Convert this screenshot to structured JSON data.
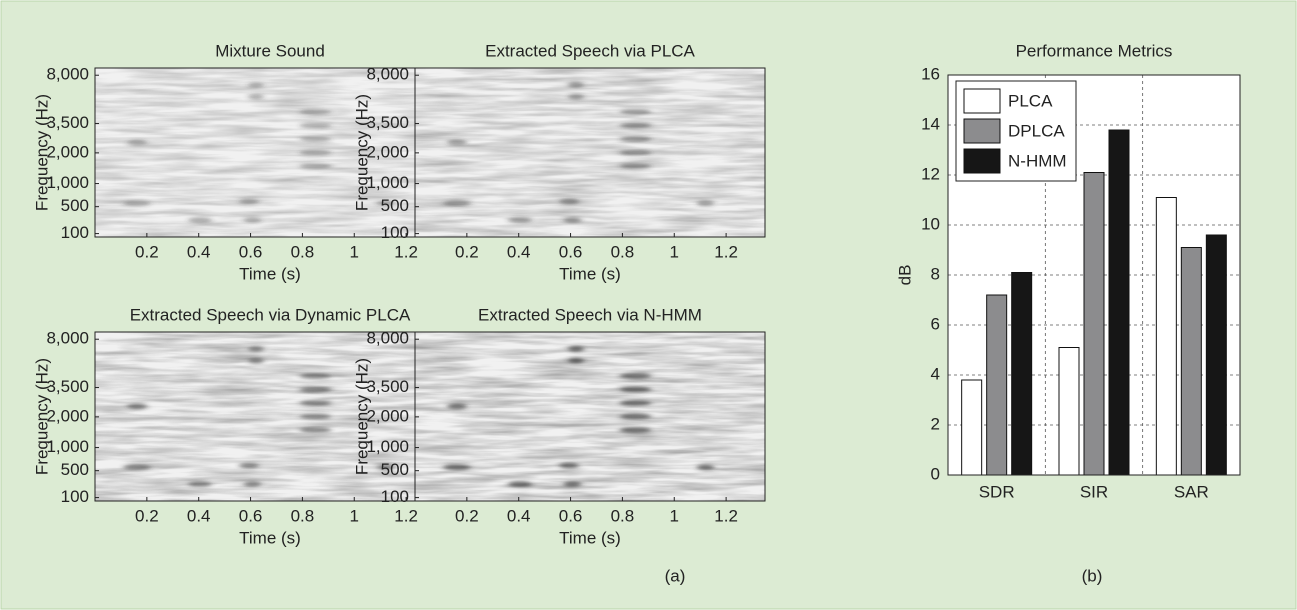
{
  "chart_data": [
    {
      "type": "spectrogram",
      "title": "Mixture Sound",
      "xlabel": "Time (s)",
      "ylabel": "Frequency (Hz)",
      "xlim": [
        0,
        1.35
      ],
      "xticks": [
        0.2,
        0.4,
        0.6,
        0.8,
        1,
        1.2
      ],
      "yscale": "mel",
      "ylim": [
        60,
        9000
      ],
      "yticks": [
        {
          "value": 100,
          "label": "100"
        },
        {
          "value": 500,
          "label": "500"
        },
        {
          "value": 1000,
          "label": "1,000"
        },
        {
          "value": 2000,
          "label": "2,000"
        },
        {
          "value": 3500,
          "label": "3,500"
        },
        {
          "value": 8000,
          "label": "8,000"
        }
      ]
    },
    {
      "type": "spectrogram",
      "title": "Extracted Speech via PLCA",
      "xlabel": "Time (s)",
      "ylabel": "Frequency (Hz)",
      "xlim": [
        0,
        1.35
      ],
      "xticks": [
        0.2,
        0.4,
        0.6,
        0.8,
        1,
        1.2
      ],
      "yscale": "mel",
      "ylim": [
        60,
        9000
      ],
      "yticks": [
        {
          "value": 100,
          "label": "100"
        },
        {
          "value": 500,
          "label": "500"
        },
        {
          "value": 1000,
          "label": "1,000"
        },
        {
          "value": 2000,
          "label": "2,000"
        },
        {
          "value": 3500,
          "label": "3,500"
        },
        {
          "value": 8000,
          "label": "8,000"
        }
      ]
    },
    {
      "type": "spectrogram",
      "title": "Extracted Speech via Dynamic PLCA",
      "xlabel": "Time (s)",
      "ylabel": "Frequency (Hz)",
      "xlim": [
        0,
        1.35
      ],
      "xticks": [
        0.2,
        0.4,
        0.6,
        0.8,
        1,
        1.2
      ],
      "yscale": "mel",
      "ylim": [
        60,
        9000
      ],
      "yticks": [
        {
          "value": 100,
          "label": "100"
        },
        {
          "value": 500,
          "label": "500"
        },
        {
          "value": 1000,
          "label": "1,000"
        },
        {
          "value": 2000,
          "label": "2,000"
        },
        {
          "value": 3500,
          "label": "3,500"
        },
        {
          "value": 8000,
          "label": "8,000"
        }
      ]
    },
    {
      "type": "spectrogram",
      "title": "Extracted Speech via N-HMM",
      "xlabel": "Time (s)",
      "ylabel": "Frequency (Hz)",
      "xlim": [
        0,
        1.35
      ],
      "xticks": [
        0.2,
        0.4,
        0.6,
        0.8,
        1,
        1.2
      ],
      "yscale": "mel",
      "ylim": [
        60,
        9000
      ],
      "yticks": [
        {
          "value": 100,
          "label": "100"
        },
        {
          "value": 500,
          "label": "500"
        },
        {
          "value": 1000,
          "label": "1,000"
        },
        {
          "value": 2000,
          "label": "2,000"
        },
        {
          "value": 3500,
          "label": "3,500"
        },
        {
          "value": 8000,
          "label": "8,000"
        }
      ]
    },
    {
      "type": "bar",
      "title": "Performance Metrics",
      "ylabel": "dB",
      "categories": [
        "SDR",
        "SIR",
        "SAR"
      ],
      "series": [
        {
          "name": "PLCA",
          "color": "#ffffff",
          "values": [
            3.8,
            5.1,
            11.1
          ]
        },
        {
          "name": "DPLCA",
          "color": "#8c8c8e",
          "values": [
            7.2,
            12.1,
            9.1
          ]
        },
        {
          "name": "N-HMM",
          "color": "#161616",
          "values": [
            8.1,
            13.8,
            9.6
          ]
        }
      ],
      "ylim": [
        0,
        16
      ],
      "yticks": [
        0,
        2,
        4,
        6,
        8,
        10,
        12,
        14,
        16
      ],
      "grid": true,
      "legend": "upper-left"
    }
  ],
  "panel_labels": [
    "(a)",
    "(b)"
  ]
}
